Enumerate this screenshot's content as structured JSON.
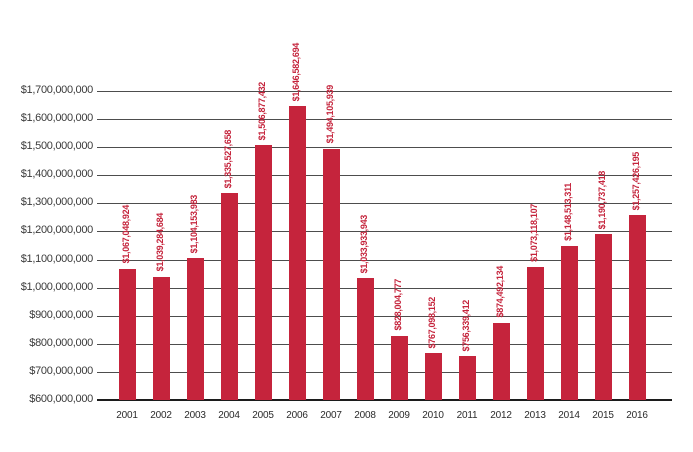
{
  "chart_data": {
    "type": "bar",
    "title": "",
    "xlabel": "",
    "ylabel": "",
    "grid": true,
    "legend": "none",
    "categories": [
      "2001",
      "2002",
      "2003",
      "2004",
      "2005",
      "2006",
      "2007",
      "2008",
      "2009",
      "2010",
      "2011",
      "2012",
      "2013",
      "2014",
      "2015",
      "2016"
    ],
    "values": [
      1067048924,
      1039284684,
      1104153983,
      1335527658,
      1506877432,
      1646582694,
      1494105939,
      1033933943,
      828004777,
      767098152,
      756339412,
      874492134,
      1073118107,
      1148513311,
      1190737418,
      1257426195
    ],
    "bar_labels": [
      "$1,067,048,924",
      "$1,039,284,684",
      "$1,104,153,983",
      "$1,335,527,658",
      "$1,506,877,432",
      "$1,646,582,694",
      "$1,494,105,939",
      "$1,033,933,943",
      "$828,004,777",
      "$767,098,152",
      "$756,339,412",
      "$874,492,134",
      "$1,073,118,107",
      "$1,148,513,311",
      "$1,190,737,418",
      "$1,257,426,195"
    ],
    "ylim": [
      600000000,
      1700000000
    ],
    "ytick_values": [
      600000000,
      700000000,
      800000000,
      900000000,
      1000000000,
      1100000000,
      1200000000,
      1300000000,
      1400000000,
      1500000000,
      1600000000,
      1700000000
    ],
    "ytick_labels": [
      "$600,000,000",
      "$700,000,000",
      "$800,000,000",
      "$900,000,000",
      "$1,000,000,000",
      "$1,100,000,000",
      "$1,200,000,000",
      "$1,300,000,000",
      "$1,400,000,000",
      "$1,500,000,000",
      "$1,600,000,000",
      "$1,700,000,000"
    ],
    "bar_color": "#C5243C",
    "label_color": "#C5243C",
    "grid_color": "#4d4d4d",
    "baseline_color": "#1c1c1c"
  }
}
